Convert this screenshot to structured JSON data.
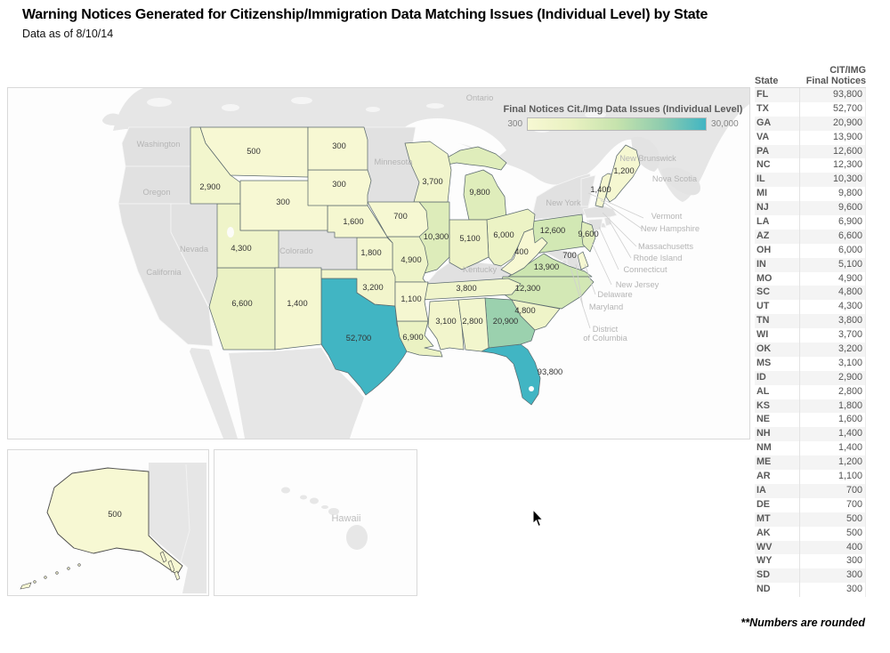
{
  "page": {
    "title": "Warning Notices Generated for Citizenship/Immigration Data Matching Issues (Individual Level) by State",
    "subtitle": "Data as of 8/10/14",
    "footnote": "**Numbers are rounded"
  },
  "legend": {
    "title": "Final Notices Cit./Img Data Issues (Individual Level)",
    "min_label": "300",
    "max_label": "30,000",
    "domain": [
      300,
      30000
    ],
    "gradient_stops": [
      "#f7f8d3",
      "#e9f1c1",
      "#c6e3ad",
      "#8fccae",
      "#41b5c3"
    ]
  },
  "table": {
    "header_top": "CIT/IMG",
    "col_state": "State",
    "col_value": "Final Notices",
    "rows": [
      {
        "state": "FL",
        "value": "93,800"
      },
      {
        "state": "TX",
        "value": "52,700"
      },
      {
        "state": "GA",
        "value": "20,900"
      },
      {
        "state": "VA",
        "value": "13,900"
      },
      {
        "state": "PA",
        "value": "12,600"
      },
      {
        "state": "NC",
        "value": "12,300"
      },
      {
        "state": "IL",
        "value": "10,300"
      },
      {
        "state": "MI",
        "value": "9,800"
      },
      {
        "state": "NJ",
        "value": "9,600"
      },
      {
        "state": "LA",
        "value": "6,900"
      },
      {
        "state": "AZ",
        "value": "6,600"
      },
      {
        "state": "OH",
        "value": "6,000"
      },
      {
        "state": "IN",
        "value": "5,100"
      },
      {
        "state": "MO",
        "value": "4,900"
      },
      {
        "state": "SC",
        "value": "4,800"
      },
      {
        "state": "UT",
        "value": "4,300"
      },
      {
        "state": "TN",
        "value": "3,800"
      },
      {
        "state": "WI",
        "value": "3,700"
      },
      {
        "state": "OK",
        "value": "3,200"
      },
      {
        "state": "MS",
        "value": "3,100"
      },
      {
        "state": "ID",
        "value": "2,900"
      },
      {
        "state": "AL",
        "value": "2,800"
      },
      {
        "state": "KS",
        "value": "1,800"
      },
      {
        "state": "NE",
        "value": "1,600"
      },
      {
        "state": "NH",
        "value": "1,400"
      },
      {
        "state": "NM",
        "value": "1,400"
      },
      {
        "state": "ME",
        "value": "1,200"
      },
      {
        "state": "AR",
        "value": "1,100"
      },
      {
        "state": "IA",
        "value": "700"
      },
      {
        "state": "DE",
        "value": "700"
      },
      {
        "state": "MT",
        "value": "500"
      },
      {
        "state": "AK",
        "value": "500"
      },
      {
        "state": "WV",
        "value": "400"
      },
      {
        "state": "WY",
        "value": "300"
      },
      {
        "state": "SD",
        "value": "300"
      },
      {
        "state": "ND",
        "value": "300"
      }
    ]
  },
  "chart_data": {
    "type": "heatmap",
    "subtype": "us-choropleth-map",
    "title": "Final Notices Cit./Img Data Issues (Individual Level)",
    "color_domain": [
      300,
      30000
    ],
    "states": [
      {
        "abbr": "FL",
        "value": 93800,
        "label": "93,800"
      },
      {
        "abbr": "TX",
        "value": 52700,
        "label": "52,700"
      },
      {
        "abbr": "GA",
        "value": 20900,
        "label": "20,900"
      },
      {
        "abbr": "VA",
        "value": 13900,
        "label": "13,900"
      },
      {
        "abbr": "PA",
        "value": 12600,
        "label": "12,600"
      },
      {
        "abbr": "NC",
        "value": 12300,
        "label": "12,300"
      },
      {
        "abbr": "IL",
        "value": 10300,
        "label": "10,300"
      },
      {
        "abbr": "MI",
        "value": 9800,
        "label": "9,800"
      },
      {
        "abbr": "NJ",
        "value": 9600,
        "label": "9,600"
      },
      {
        "abbr": "LA",
        "value": 6900,
        "label": "6,900"
      },
      {
        "abbr": "AZ",
        "value": 6600,
        "label": "6,600"
      },
      {
        "abbr": "OH",
        "value": 6000,
        "label": "6,000"
      },
      {
        "abbr": "IN",
        "value": 5100,
        "label": "5,100"
      },
      {
        "abbr": "MO",
        "value": 4900,
        "label": "4,900"
      },
      {
        "abbr": "SC",
        "value": 4800,
        "label": "4,800"
      },
      {
        "abbr": "UT",
        "value": 4300,
        "label": "4,300"
      },
      {
        "abbr": "TN",
        "value": 3800,
        "label": "3,800"
      },
      {
        "abbr": "WI",
        "value": 3700,
        "label": "3,700"
      },
      {
        "abbr": "OK",
        "value": 3200,
        "label": "3,200"
      },
      {
        "abbr": "MS",
        "value": 3100,
        "label": "3,100"
      },
      {
        "abbr": "ID",
        "value": 2900,
        "label": "2,900"
      },
      {
        "abbr": "AL",
        "value": 2800,
        "label": "2,800"
      },
      {
        "abbr": "KS",
        "value": 1800,
        "label": "1,800"
      },
      {
        "abbr": "NE",
        "value": 1600,
        "label": "1,600"
      },
      {
        "abbr": "NH",
        "value": 1400,
        "label": "1,400"
      },
      {
        "abbr": "NM",
        "value": 1400,
        "label": "1,400"
      },
      {
        "abbr": "ME",
        "value": 1200,
        "label": "1,200"
      },
      {
        "abbr": "AR",
        "value": 1100,
        "label": "1,100"
      },
      {
        "abbr": "IA",
        "value": 700,
        "label": "700"
      },
      {
        "abbr": "DE",
        "value": 700,
        "label": "700"
      },
      {
        "abbr": "MT",
        "value": 500,
        "label": "500"
      },
      {
        "abbr": "AK",
        "value": 500,
        "label": "500"
      },
      {
        "abbr": "WV",
        "value": 400,
        "label": "400"
      },
      {
        "abbr": "WY",
        "value": 300,
        "label": "300"
      },
      {
        "abbr": "SD",
        "value": 300,
        "label": "300"
      },
      {
        "abbr": "ND",
        "value": 300,
        "label": "300"
      }
    ],
    "no_data_states": [
      "WA",
      "OR",
      "CA",
      "NV",
      "CO",
      "MN",
      "NY",
      "KY",
      "VT",
      "MA",
      "RI",
      "CT",
      "MD",
      "DC",
      "HI"
    ]
  },
  "basemap_labels": {
    "ontario": "Ontario",
    "washington": "Washington",
    "oregon": "Oregon",
    "california": "California",
    "nevada": "Nevada",
    "colorado": "Colorado",
    "minnesota": "Minnesota",
    "kentucky": "Kentucky",
    "new_york": "New York",
    "new_brunswick": "New Brunswick",
    "nova_scotia": "Nova Scotia",
    "vermont": "Vermont",
    "new_hampshire": "New Hampshire",
    "massachusetts": "Massachusetts",
    "rhode_island": "Rhode Island",
    "connecticut": "Connecticut",
    "new_jersey": "New Jersey",
    "delaware": "Delaware",
    "maryland": "Maryland",
    "district_line1": "District",
    "district_line2": "of Columbia",
    "hawaii": "Hawaii"
  }
}
